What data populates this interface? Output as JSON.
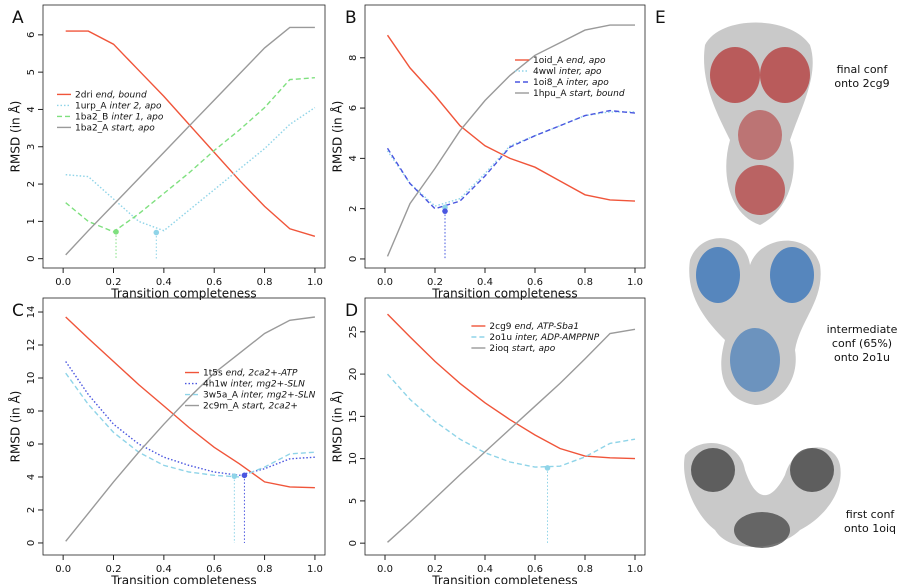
{
  "chart_data": [
    {
      "type": "line",
      "label": "A",
      "xlabel": "Transition completeness",
      "ylabel": "RMSD (in Å)",
      "x": [
        0.01,
        0.1,
        0.2,
        0.3,
        0.4,
        0.5,
        0.6,
        0.7,
        0.8,
        0.9,
        1.0
      ],
      "xlim": [
        -0.08,
        1.04
      ],
      "ylim": [
        -0.25,
        6.8
      ],
      "xticks": [
        {
          "value": 0,
          "label": "0.0"
        },
        0.2,
        0.4,
        0.6,
        0.8,
        {
          "value": 1,
          "label": "1.0"
        }
      ],
      "yticks": [
        0,
        1,
        2,
        3,
        4,
        5,
        6
      ],
      "legend": "left",
      "series": [
        {
          "name": "2dri",
          "note": "end, bound",
          "color": "#f0553a",
          "dash": "solid",
          "values": [
            6.1,
            6.1,
            5.75,
            5.05,
            4.35,
            3.6,
            2.85,
            2.1,
            1.4,
            0.8,
            0.6
          ]
        },
        {
          "name": "1urp_A",
          "note": "inter 2, apo",
          "color": "#8fd4e8",
          "dash": "dotted",
          "values": [
            2.25,
            2.2,
            1.6,
            1.0,
            0.75,
            1.3,
            1.85,
            2.4,
            2.95,
            3.6,
            4.05
          ]
        },
        {
          "name": "1ba2_B",
          "note": "inter 1, apo",
          "color": "#7fe07f",
          "dash": "dashed",
          "values": [
            1.5,
            1.0,
            0.72,
            1.2,
            1.75,
            2.3,
            2.9,
            3.45,
            4.05,
            4.8,
            4.85
          ]
        },
        {
          "name": "1ba2_A",
          "note": "start, apo",
          "color": "#9a9a9a",
          "dash": "solid",
          "values": [
            0.1,
            0.75,
            1.45,
            2.15,
            2.85,
            3.55,
            4.25,
            4.95,
            5.65,
            6.2,
            6.2
          ]
        }
      ],
      "markers": [
        {
          "x": 0.21,
          "y": 0.72,
          "color": "#7fe07f"
        },
        {
          "x": 0.37,
          "y": 0.7,
          "color": "#8fd4e8"
        }
      ]
    },
    {
      "type": "line",
      "label": "B",
      "xlabel": "Transition completeness",
      "ylabel": "RMSD (in Å)",
      "x": [
        0.01,
        0.1,
        0.2,
        0.3,
        0.4,
        0.5,
        0.6,
        0.7,
        0.8,
        0.9,
        1.0
      ],
      "xlim": [
        -0.08,
        1.04
      ],
      "ylim": [
        -0.36,
        10.1
      ],
      "xticks": [
        {
          "value": 0,
          "label": "0.0"
        },
        0.2,
        0.4,
        0.6,
        0.8,
        {
          "value": 1,
          "label": "1.0"
        }
      ],
      "yticks": [
        0,
        2,
        4,
        6,
        8
      ],
      "legend": "topright",
      "series": [
        {
          "name": "1oid_A",
          "note": "end, apo",
          "color": "#f0553a",
          "dash": "solid",
          "values": [
            8.9,
            7.6,
            6.5,
            5.3,
            4.5,
            4.0,
            3.65,
            3.1,
            2.55,
            2.35,
            2.3
          ]
        },
        {
          "name": "4wwl",
          "note": "inter, apo",
          "color": "#8fd4e8",
          "dash": "dotted",
          "values": [
            4.3,
            3.0,
            2.1,
            2.4,
            3.4,
            4.5,
            4.9,
            5.3,
            5.7,
            5.85,
            5.85
          ]
        },
        {
          "name": "1oi8_A",
          "note": "inter, apo",
          "color": "#4a56e0",
          "dash": "dashed",
          "values": [
            4.4,
            3.0,
            2.0,
            2.3,
            3.3,
            4.45,
            4.9,
            5.3,
            5.7,
            5.9,
            5.8
          ]
        },
        {
          "name": "1hpu_A",
          "note": "start, bound",
          "color": "#9a9a9a",
          "dash": "solid",
          "values": [
            0.1,
            2.2,
            3.6,
            5.1,
            6.3,
            7.3,
            8.1,
            8.6,
            9.1,
            9.3,
            9.3
          ]
        }
      ],
      "markers": [
        {
          "x": 0.24,
          "y": 2.05,
          "color": "#8fd4e8"
        },
        {
          "x": 0.24,
          "y": 1.9,
          "color": "#4a56e0"
        }
      ]
    },
    {
      "type": "line",
      "label": "C",
      "xlabel": "Transition completeness",
      "ylabel": "RMSD (in Å)",
      "x": [
        0.01,
        0.1,
        0.2,
        0.3,
        0.4,
        0.5,
        0.6,
        0.7,
        0.8,
        0.9,
        1.0
      ],
      "xlim": [
        -0.08,
        1.04
      ],
      "ylim": [
        -0.73,
        14.85
      ],
      "xticks": [
        {
          "value": 0,
          "label": "0.0"
        },
        0.2,
        0.4,
        0.6,
        0.8,
        {
          "value": 1,
          "label": "1.0"
        }
      ],
      "yticks": [
        0,
        2,
        4,
        6,
        8,
        10,
        12,
        14
      ],
      "legend": "right",
      "series": [
        {
          "name": "1t5s",
          "note": "end, 2ca2+-ATP",
          "color": "#f0553a",
          "dash": "solid",
          "values": [
            13.7,
            12.4,
            11.0,
            9.6,
            8.3,
            7.0,
            5.8,
            4.8,
            3.7,
            3.4,
            3.35
          ]
        },
        {
          "name": "4h1w",
          "note": "inter, mg2+-SLN",
          "color": "#4a56e0",
          "dash": "dotted",
          "values": [
            11.0,
            9.0,
            7.2,
            6.0,
            5.2,
            4.7,
            4.3,
            4.1,
            4.5,
            5.1,
            5.2
          ]
        },
        {
          "name": "3w5a_A",
          "note": "inter, mg2+-SLN",
          "color": "#8fd4e8",
          "dash": "dashed",
          "values": [
            10.3,
            8.4,
            6.7,
            5.5,
            4.7,
            4.3,
            4.1,
            4.0,
            4.6,
            5.4,
            5.5
          ]
        },
        {
          "name": "2c9m_A",
          "note": "start, 2ca2+",
          "color": "#9a9a9a",
          "dash": "solid",
          "values": [
            0.1,
            1.8,
            3.7,
            5.5,
            7.2,
            8.8,
            10.3,
            11.5,
            12.7,
            13.5,
            13.7
          ]
        }
      ],
      "markers": [
        {
          "x": 0.68,
          "y": 4.05,
          "color": "#8fd4e8"
        },
        {
          "x": 0.72,
          "y": 4.1,
          "color": "#4a56e0"
        }
      ]
    },
    {
      "type": "line",
      "label": "D",
      "xlabel": "Transition completeness",
      "ylabel": "RMSD (in Å)",
      "x": [
        0.01,
        0.1,
        0.2,
        0.3,
        0.4,
        0.5,
        0.6,
        0.7,
        0.8,
        0.9,
        1.0
      ],
      "xlim": [
        -0.08,
        1.04
      ],
      "ylim": [
        -1.4,
        29
      ],
      "xticks": [
        {
          "value": 0,
          "label": "0.0"
        },
        0.2,
        0.4,
        0.6,
        0.8,
        {
          "value": 1,
          "label": "1.0"
        }
      ],
      "yticks": [
        0,
        5,
        10,
        15,
        20,
        25
      ],
      "legend": "top",
      "series": [
        {
          "name": "2cg9",
          "note": "end, ATP-Sba1",
          "color": "#f0553a",
          "dash": "solid",
          "values": [
            27.1,
            24.4,
            21.5,
            18.9,
            16.6,
            14.6,
            12.8,
            11.2,
            10.3,
            10.1,
            10.0
          ]
        },
        {
          "name": "2o1u",
          "note": "inter, ADP-AMPPNP",
          "color": "#8fd4e8",
          "dash": "dashed",
          "values": [
            20.0,
            17.0,
            14.4,
            12.3,
            10.7,
            9.6,
            9.0,
            9.1,
            10.2,
            11.8,
            12.3
          ]
        },
        {
          "name": "2ioq",
          "note": "start, apo",
          "color": "#9a9a9a",
          "dash": "solid",
          "values": [
            0.1,
            2.5,
            5.3,
            8.1,
            10.8,
            13.5,
            16.2,
            18.9,
            21.8,
            24.8,
            25.3
          ]
        }
      ],
      "markers": [
        {
          "x": 0.65,
          "y": 8.9,
          "color": "#8fd4e8"
        }
      ]
    }
  ],
  "panel_e": {
    "label": "E",
    "structures": [
      {
        "lines": [
          "final conf",
          "onto 2cg9"
        ]
      },
      {
        "lines": [
          "intermediate",
          "conf (65%)",
          "onto 2o1u"
        ]
      },
      {
        "lines": [
          "first conf",
          "onto 1oiq"
        ]
      }
    ]
  }
}
